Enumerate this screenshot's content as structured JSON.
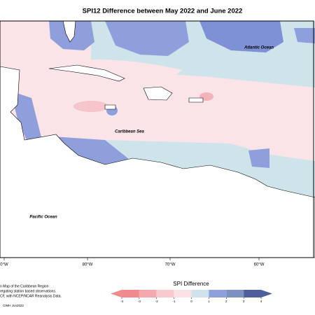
{
  "title": "SPI12 Difference between May 2022 and June 2022",
  "labels": {
    "atlantic": "Atlantic Ocean",
    "caribbean": "Caribbean Sea",
    "pacific": "Pacific Ocean"
  },
  "longitudes": [
    "0°W",
    "80°W",
    "70°W",
    "60°W"
  ],
  "notes": [
    "n Map of the Caribbean Region",
    "regating station based observations.",
    "CF, with NCEP/NCAR Reanalysis Data."
  ],
  "credit": "CIMH Jun2022",
  "legend": {
    "title": "SPI Difference",
    "ticks": [
      -4,
      -3,
      -2,
      -1,
      0,
      1,
      2,
      3,
      4
    ],
    "colors": [
      "#f08a8f",
      "#f4a9ae",
      "#f8c9cf",
      "#fbe2e6",
      "#cfe4ea",
      "#8f9fdc",
      "#7d90c2",
      "#4f5f9c"
    ]
  }
}
